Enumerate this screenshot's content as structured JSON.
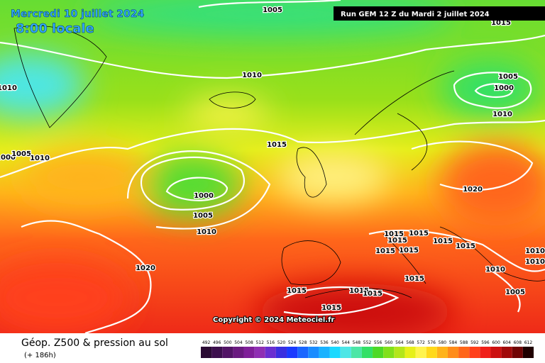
{
  "header": {
    "date": "Mercredi 10 juillet 2024",
    "time": "8:00 locale",
    "run": "Run GEM 12 Z du Mardi 2 juillet 2024"
  },
  "isobar_labels": [
    "1005",
    "1015",
    "1010",
    "1010",
    "1005",
    "1000",
    "1010",
    "1015",
    "1000",
    "1005",
    "1010",
    "1020",
    "1000",
    "1005",
    "1010",
    "1015",
    "1015",
    "1015",
    "1015",
    "1015",
    "1015",
    "1015",
    "1010",
    "1010",
    "1010",
    "1020",
    "1015",
    "1015",
    "1015",
    "1015",
    "1005",
    "1015"
  ],
  "copyright": "Copyright © 2024 Meteociel.fr",
  "legend": {
    "title": "Géop. Z500 & pression au sol",
    "subtitle": "(+ 186h)",
    "scale": [
      {
        "label": 492,
        "color": "#2a0a33"
      },
      {
        "label": 496,
        "color": "#3c0f4d"
      },
      {
        "label": 500,
        "color": "#521466"
      },
      {
        "label": 504,
        "color": "#6a1a80"
      },
      {
        "label": 508,
        "color": "#7f1f99"
      },
      {
        "label": 512,
        "color": "#8f2fb3"
      },
      {
        "label": 516,
        "color": "#6a2fd0"
      },
      {
        "label": 520,
        "color": "#3a2fe0"
      },
      {
        "label": 524,
        "color": "#1a3aff"
      },
      {
        "label": 528,
        "color": "#1a66ff"
      },
      {
        "label": 532,
        "color": "#1a8cff"
      },
      {
        "label": 536,
        "color": "#1ab2ff"
      },
      {
        "label": 540,
        "color": "#1ad9ff"
      },
      {
        "label": 544,
        "color": "#4de6e6"
      },
      {
        "label": 548,
        "color": "#4de6a6"
      },
      {
        "label": 552,
        "color": "#33e066"
      },
      {
        "label": 556,
        "color": "#4dd926"
      },
      {
        "label": 560,
        "color": "#80e01a"
      },
      {
        "label": 564,
        "color": "#b3e61a"
      },
      {
        "label": 568,
        "color": "#e6f01a"
      },
      {
        "label": 572,
        "color": "#fff44d"
      },
      {
        "label": 576,
        "color": "#ffd91a"
      },
      {
        "label": 580,
        "color": "#ffb31a"
      },
      {
        "label": 584,
        "color": "#ff8c1a"
      },
      {
        "label": 588,
        "color": "#ff661a"
      },
      {
        "label": 592,
        "color": "#ff401a"
      },
      {
        "label": 596,
        "color": "#f0201a"
      },
      {
        "label": 600,
        "color": "#cc1010"
      },
      {
        "label": 604,
        "color": "#a00a0a"
      },
      {
        "label": 608,
        "color": "#700505"
      },
      {
        "label": 612,
        "color": "#200000"
      }
    ]
  }
}
